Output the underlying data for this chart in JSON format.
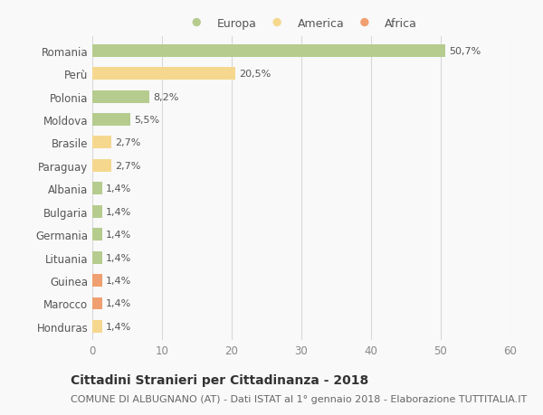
{
  "countries": [
    "Romania",
    "Perù",
    "Polonia",
    "Moldova",
    "Brasile",
    "Paraguay",
    "Albania",
    "Bulgaria",
    "Germania",
    "Lituania",
    "Guinea",
    "Marocco",
    "Honduras"
  ],
  "values": [
    50.7,
    20.5,
    8.2,
    5.5,
    2.7,
    2.7,
    1.4,
    1.4,
    1.4,
    1.4,
    1.4,
    1.4,
    1.4
  ],
  "labels": [
    "50,7%",
    "20,5%",
    "8,2%",
    "5,5%",
    "2,7%",
    "2,7%",
    "1,4%",
    "1,4%",
    "1,4%",
    "1,4%",
    "1,4%",
    "1,4%",
    "1,4%"
  ],
  "continent": [
    "Europa",
    "America",
    "Europa",
    "Europa",
    "America",
    "America",
    "Europa",
    "Europa",
    "Europa",
    "Europa",
    "Africa",
    "Africa",
    "America"
  ],
  "colors": {
    "Europa": "#b5cc8e",
    "America": "#f5d78e",
    "Africa": "#f0a070"
  },
  "legend_labels": [
    "Europa",
    "America",
    "Africa"
  ],
  "xlim": [
    0,
    60
  ],
  "xticks": [
    0,
    10,
    20,
    30,
    40,
    50,
    60
  ],
  "title": "Cittadini Stranieri per Cittadinanza - 2018",
  "subtitle": "COMUNE DI ALBUGNANO (AT) - Dati ISTAT al 1° gennaio 2018 - Elaborazione TUTTITALIA.IT",
  "background_color": "#f9f9f9",
  "grid_color": "#d8d8d8",
  "bar_height": 0.55,
  "title_fontsize": 10,
  "subtitle_fontsize": 8,
  "label_fontsize": 8,
  "tick_fontsize": 8.5,
  "legend_fontsize": 9
}
